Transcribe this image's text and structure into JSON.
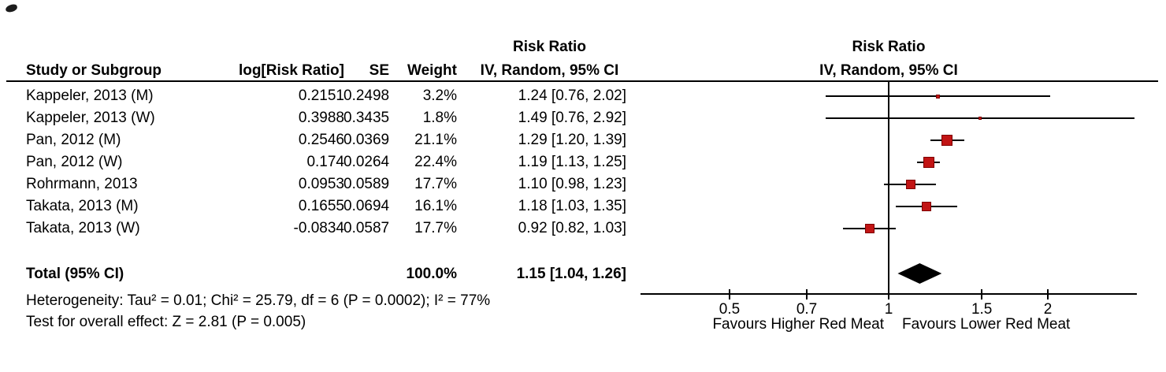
{
  "colors": {
    "marker_fill": "#C11414",
    "marker_border": "#7F0000",
    "line": "#000000",
    "diamond": "#000000"
  },
  "headers": {
    "study": "Study or Subgroup",
    "log_risk_ratio": "log[Risk Ratio]",
    "se": "SE",
    "weight": "Weight",
    "risk_ratio": "Risk Ratio",
    "method_ci": "IV, Random, 95% CI"
  },
  "chart_data": {
    "type": "forest",
    "effect_measure": "Risk Ratio",
    "model": "IV, Random, 95% CI",
    "x_scale": "log",
    "x_ticks": [
      0.5,
      0.7,
      1,
      1.5,
      2
    ],
    "x_tick_labels": [
      "0.5",
      "0.7",
      "1",
      "1.5",
      "2"
    ],
    "x_range": [
      0.33,
      2.95
    ],
    "x_axis_labels": {
      "left": "Favours Higher Red Meat",
      "right": "Favours Lower Red Meat"
    },
    "studies": [
      {
        "name": "Kappeler, 2013 (M)",
        "log_rr": "0.2151",
        "se": "0.2498",
        "weight": "3.2%",
        "weight_pct": 3.2,
        "rr": 1.24,
        "ci_low": 0.76,
        "ci_high": 2.02,
        "ci_text": "1.24 [0.76, 2.02]"
      },
      {
        "name": "Kappeler, 2013 (W)",
        "log_rr": "0.3988",
        "se": "0.3435",
        "weight": "1.8%",
        "weight_pct": 1.8,
        "rr": 1.49,
        "ci_low": 0.76,
        "ci_high": 2.92,
        "ci_text": "1.49 [0.76, 2.92]"
      },
      {
        "name": "Pan, 2012 (M)",
        "log_rr": "0.2546",
        "se": "0.0369",
        "weight": "21.1%",
        "weight_pct": 21.1,
        "rr": 1.29,
        "ci_low": 1.2,
        "ci_high": 1.39,
        "ci_text": "1.29 [1.20, 1.39]"
      },
      {
        "name": "Pan, 2012 (W)",
        "log_rr": "0.174",
        "se": "0.0264",
        "weight": "22.4%",
        "weight_pct": 22.4,
        "rr": 1.19,
        "ci_low": 1.13,
        "ci_high": 1.25,
        "ci_text": "1.19 [1.13, 1.25]"
      },
      {
        "name": "Rohrmann, 2013",
        "log_rr": "0.0953",
        "se": "0.0589",
        "weight": "17.7%",
        "weight_pct": 17.7,
        "rr": 1.1,
        "ci_low": 0.98,
        "ci_high": 1.23,
        "ci_text": "1.10 [0.98, 1.23]"
      },
      {
        "name": "Takata, 2013 (M)",
        "log_rr": "0.1655",
        "se": "0.0694",
        "weight": "16.1%",
        "weight_pct": 16.1,
        "rr": 1.18,
        "ci_low": 1.03,
        "ci_high": 1.35,
        "ci_text": "1.18 [1.03, 1.35]"
      },
      {
        "name": "Takata, 2013 (W)",
        "log_rr": "-0.0834",
        "se": "0.0587",
        "weight": "17.7%",
        "weight_pct": 17.7,
        "rr": 0.92,
        "ci_low": 0.82,
        "ci_high": 1.03,
        "ci_text": "0.92 [0.82, 1.03]"
      }
    ],
    "total": {
      "label": "Total (95% CI)",
      "weight": "100.0%",
      "rr": 1.15,
      "ci_low": 1.04,
      "ci_high": 1.26,
      "ci_text": "1.15 [1.04, 1.26]"
    },
    "heterogeneity": "Heterogeneity: Tau² = 0.01; Chi² = 25.79, df = 6 (P = 0.0002); I² = 77%",
    "overall_effect": "Test for overall effect: Z = 2.81 (P = 0.005)"
  }
}
